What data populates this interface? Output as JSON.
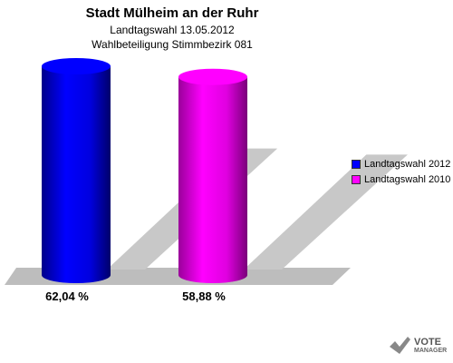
{
  "chart_data": {
    "type": "bar",
    "title": "Stadt Mülheim an der Ruhr",
    "subtitle1": "Landtagswahl 13.05.2012",
    "subtitle2": "Wahlbeteiligung Stimmbezirk 081",
    "categories": [
      "Landtagswahl 2012",
      "Landtagswahl 2010"
    ],
    "values": [
      62.04,
      58.88
    ],
    "value_labels": [
      "62,04 %",
      "58,88 %"
    ],
    "colors": [
      "#0000ff",
      "#ff00ff"
    ],
    "ylim": [
      0,
      62.04
    ],
    "legend_position": "right",
    "grid": false
  },
  "logo": {
    "line1": "VOTE",
    "line2": "MANAGER"
  }
}
